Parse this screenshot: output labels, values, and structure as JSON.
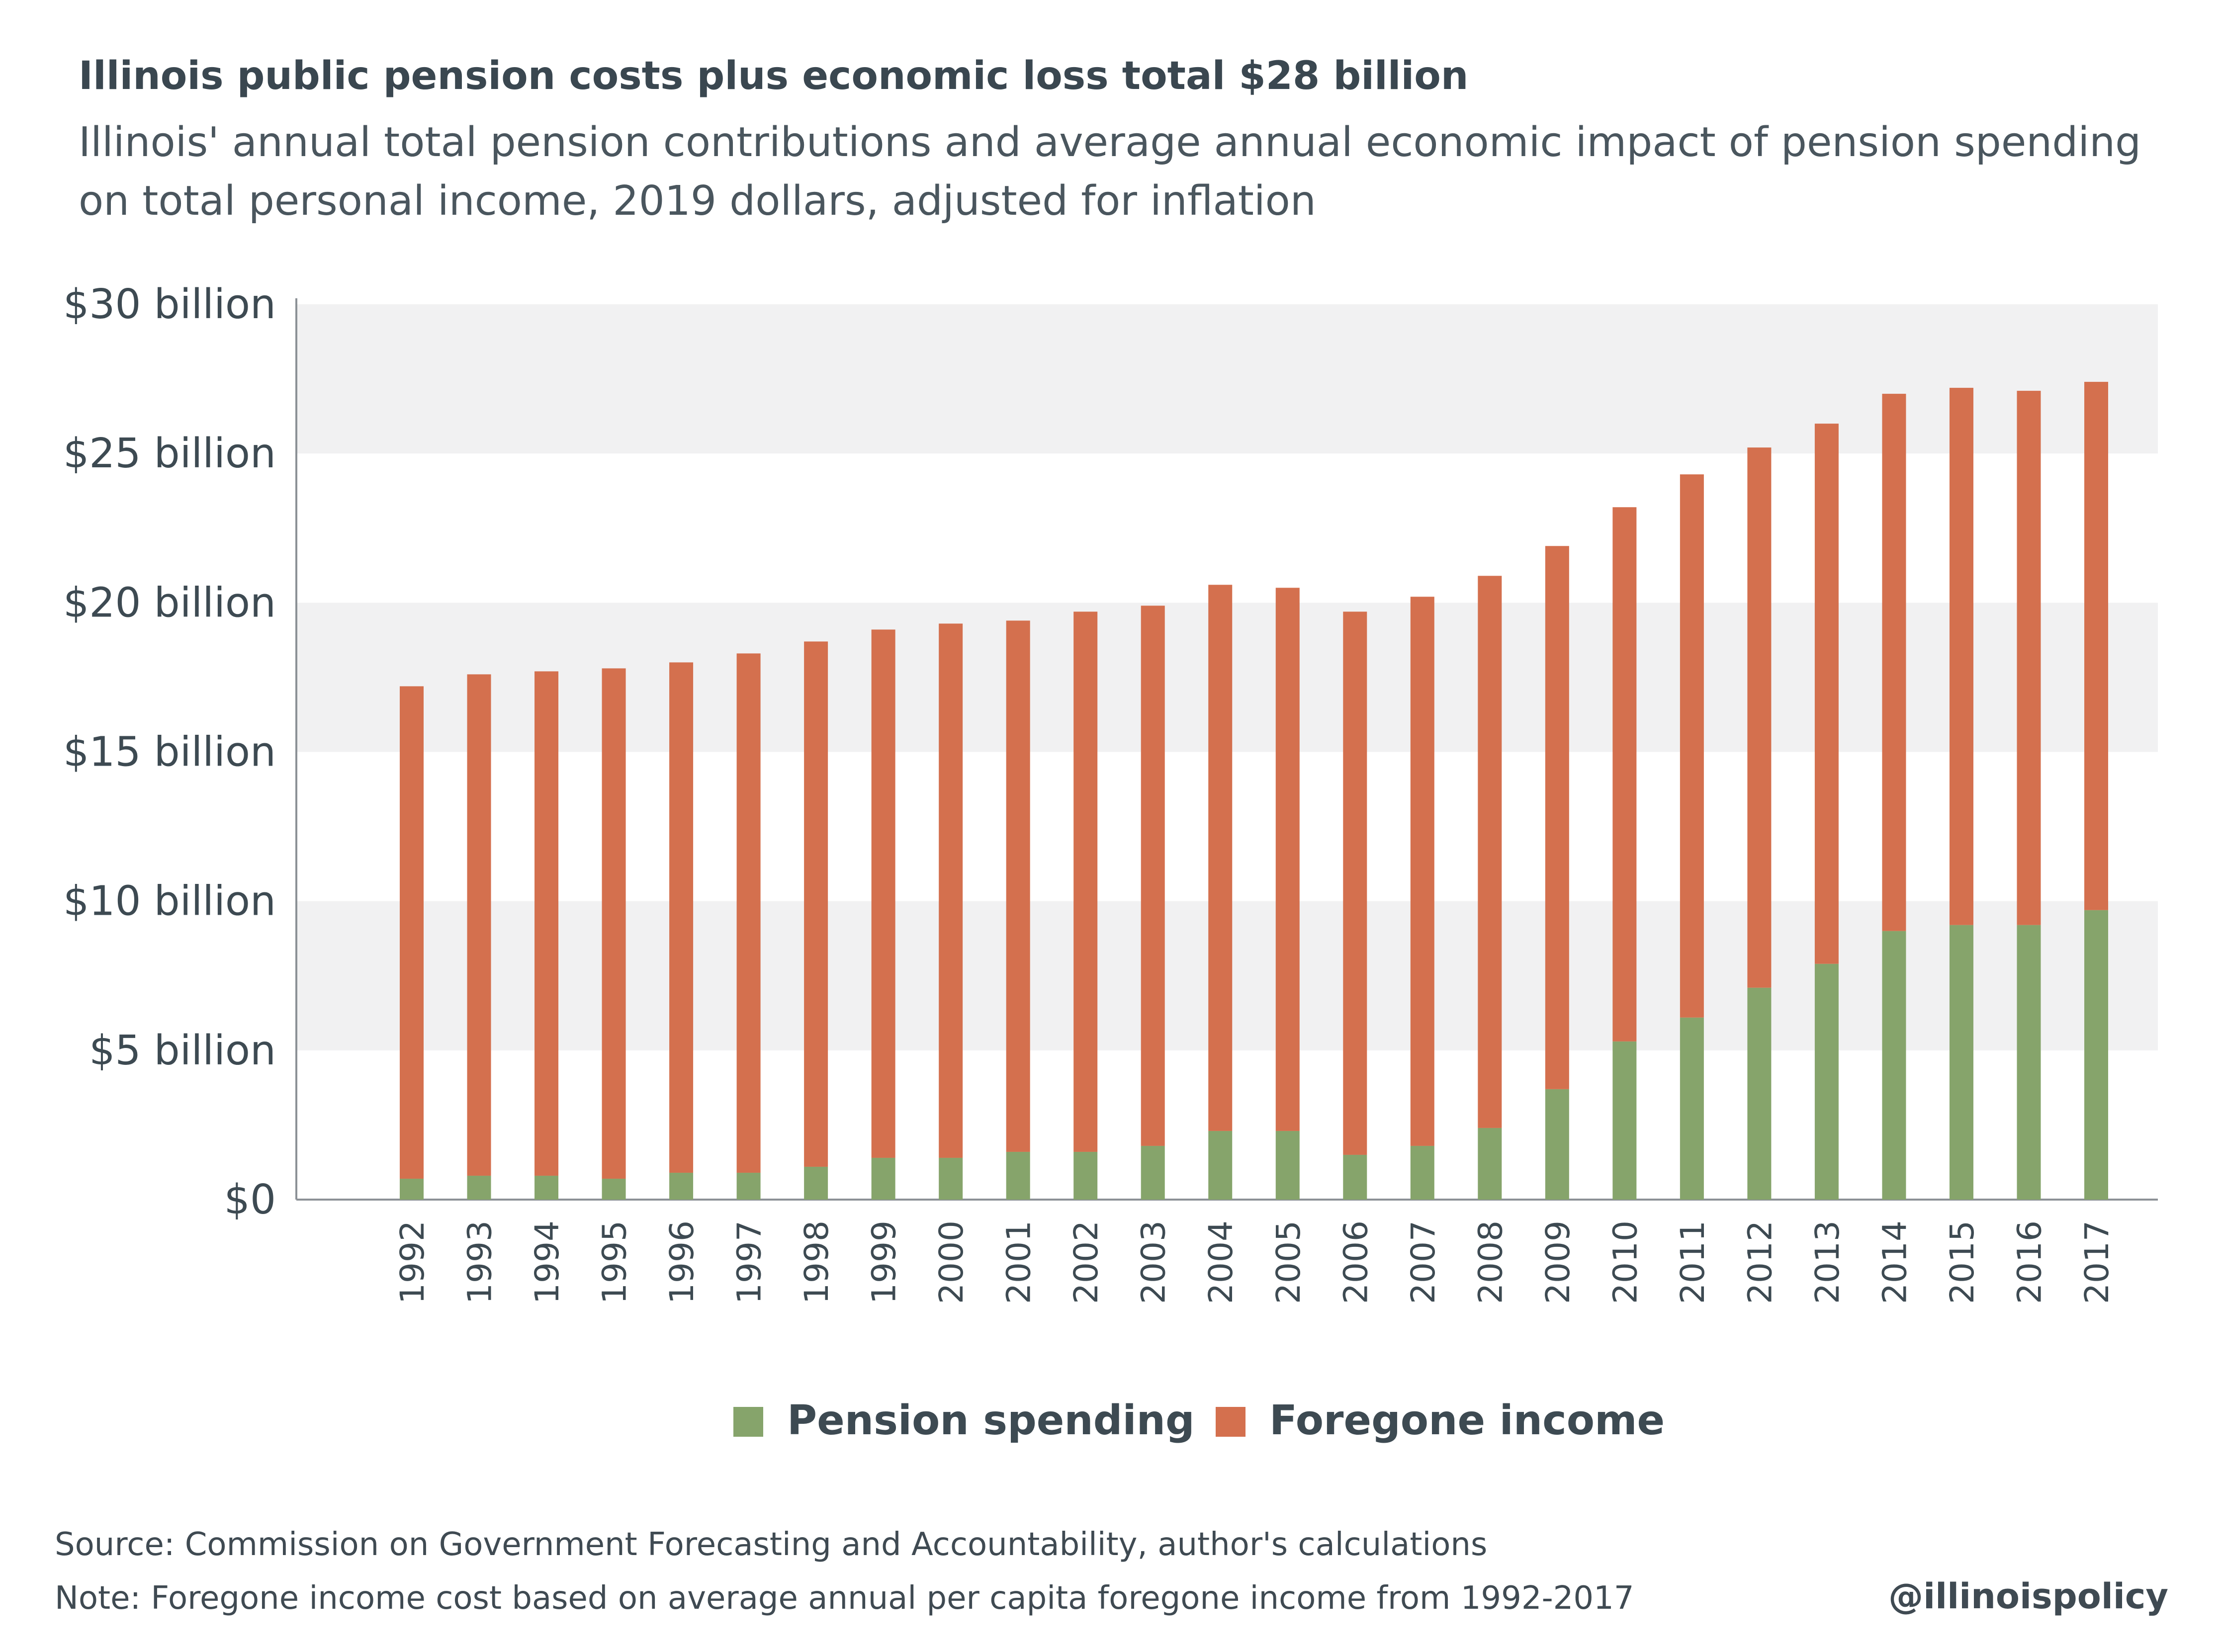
{
  "title": "Illinois public pension costs plus economic loss total $28 billion",
  "subtitle": "Illinois' annual total pension contributions and average annual economic impact of pension spending on total personal income, 2019 dollars, adjusted for inflation",
  "source": "Source: Commission on Government Forecasting and Accountability, author's calculations",
  "note": "Note: Foregone income cost based on average annual per capita foregone income from 1992-2017",
  "handle": "@illinoispolicy",
  "colors": {
    "pension": "#86a46b",
    "foregone": "#d4704e",
    "band": "#f1f1f2",
    "axis": "#8c9196",
    "text": "#3d4a52"
  },
  "chart_data": {
    "type": "bar",
    "stacked": true,
    "categories": [
      "1992",
      "1993",
      "1994",
      "1995",
      "1996",
      "1997",
      "1998",
      "1999",
      "2000",
      "2001",
      "2002",
      "2003",
      "2004",
      "2005",
      "2006",
      "2007",
      "2008",
      "2009",
      "2010",
      "2011",
      "2012",
      "2013",
      "2014",
      "2015",
      "2016",
      "2017"
    ],
    "series": [
      {
        "name": "Pension spending",
        "color": "#86a46b",
        "values": [
          0.7,
          0.8,
          0.8,
          0.7,
          0.9,
          0.9,
          1.1,
          1.4,
          1.4,
          1.6,
          1.6,
          1.8,
          2.3,
          2.3,
          1.5,
          1.8,
          2.4,
          3.7,
          5.3,
          6.1,
          7.1,
          7.9,
          9.0,
          9.2,
          9.2,
          9.7
        ]
      },
      {
        "name": "Foregone income",
        "color": "#d4704e",
        "values": [
          16.5,
          16.8,
          16.9,
          17.1,
          17.1,
          17.4,
          17.6,
          17.7,
          17.9,
          17.8,
          18.1,
          18.1,
          18.3,
          18.2,
          18.2,
          18.4,
          18.5,
          18.2,
          17.9,
          18.2,
          18.1,
          18.1,
          18.0,
          18.0,
          17.9,
          17.7
        ]
      }
    ],
    "yticks": [
      {
        "value": 0,
        "label": "$0"
      },
      {
        "value": 5,
        "label": "$5 billion"
      },
      {
        "value": 10,
        "label": "$10 billion"
      },
      {
        "value": 15,
        "label": "$15 billion"
      },
      {
        "value": 20,
        "label": "$20 billion"
      },
      {
        "value": 25,
        "label": "$25 billion"
      },
      {
        "value": 30,
        "label": "$30 billion"
      }
    ],
    "ylim": [
      0,
      30
    ],
    "xlabel": "",
    "ylabel": "",
    "legend_position": "bottom-center",
    "grid": "alternating horizontal bands"
  }
}
